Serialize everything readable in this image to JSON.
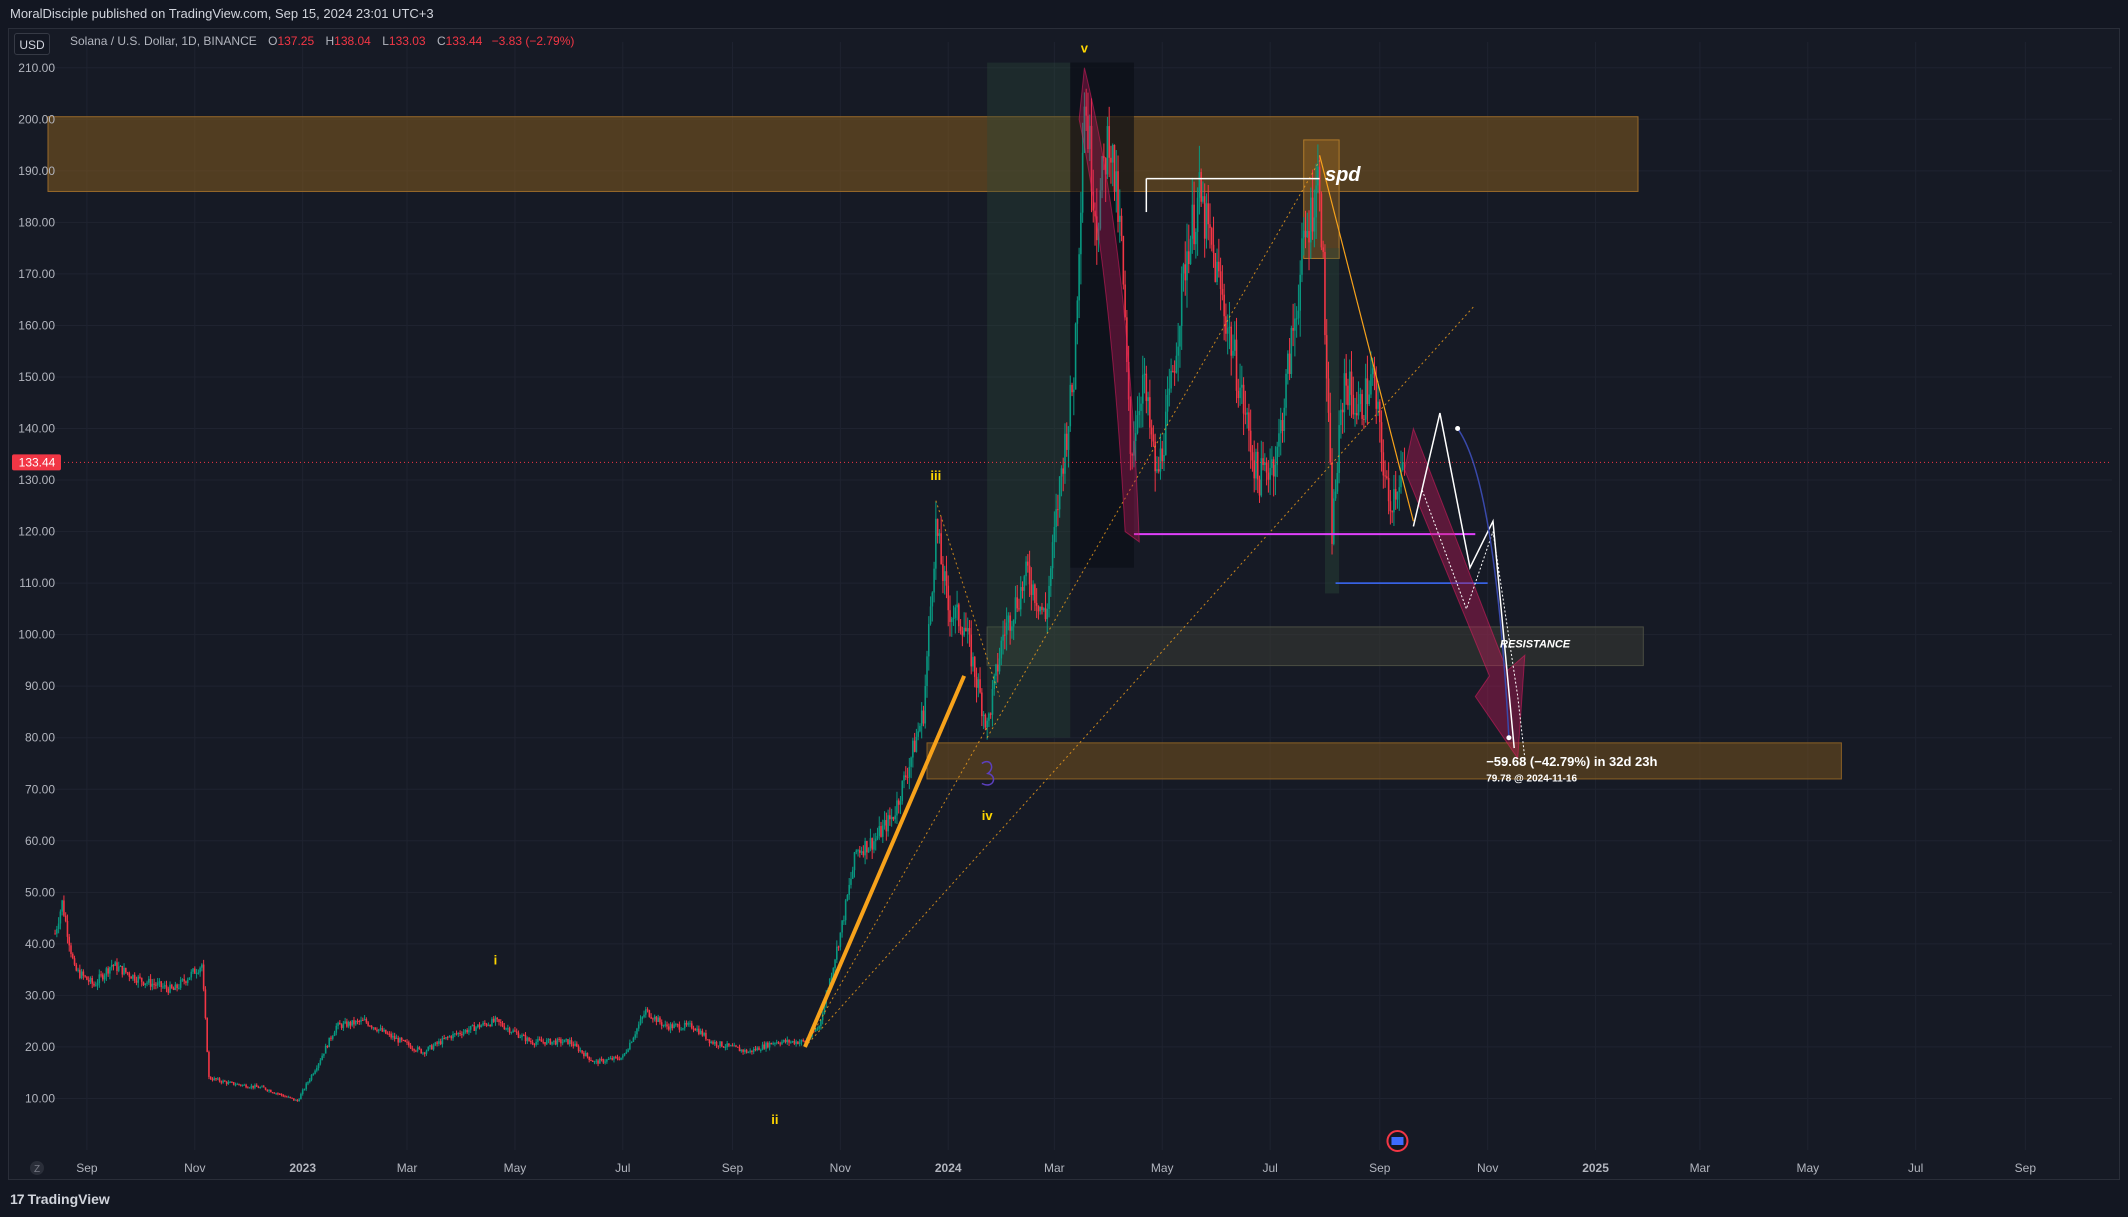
{
  "header": {
    "publisher_text": "MoralDisciple published on TradingView.com, Sep 15, 2024 23:01 UTC+3",
    "currency_button": "USD",
    "symbol_title": "Solana / U.S. Dollar, 1D, BINANCE",
    "ohlc": {
      "o_label": "O",
      "o_value": "137.25",
      "h_label": "H",
      "h_value": "138.04",
      "l_label": "L",
      "l_value": "133.03",
      "c_label": "C",
      "c_value": "133.44",
      "change": "−3.83 (−2.79%)"
    }
  },
  "footer": {
    "brand": "TradingView",
    "z_button": "Z"
  },
  "colors": {
    "background": "#131722",
    "up": "#089981",
    "down": "#f23645",
    "zone_orange": "#7a5520",
    "trendline": "#f7a21b",
    "support_magenta": "#e040fb",
    "support_blue": "#3d6cff",
    "last_price": "#f23645"
  },
  "chart_data": {
    "type": "candlestick",
    "title": "Solana / U.S. Dollar, 1D, BINANCE",
    "y_axis": {
      "ticks": [
        "210.00",
        "200.00",
        "190.00",
        "180.00",
        "170.00",
        "160.00",
        "150.00",
        "140.00",
        "130.00",
        "120.00",
        "110.00",
        "100.00",
        "90.00",
        "80.00",
        "70.00",
        "60.00",
        "50.00",
        "40.00",
        "30.00",
        "20.00",
        "10.00"
      ],
      "range": [
        0,
        215
      ]
    },
    "x_axis": {
      "ticks": [
        "Sep",
        "Nov",
        "2023",
        "Mar",
        "May",
        "Jul",
        "Sep",
        "Nov",
        "2024",
        "Mar",
        "May",
        "Jul",
        "Sep",
        "Nov",
        "2025",
        "Mar",
        "May",
        "Jul",
        "Sep"
      ],
      "range": [
        "2022-08-10",
        "2025-10-20"
      ]
    },
    "last_price": {
      "value": 133.44,
      "label": "133.44"
    },
    "price_path": [
      [
        "2022-08-14",
        42
      ],
      [
        "2022-08-18",
        48
      ],
      [
        "2022-08-25",
        35
      ],
      [
        "2022-09-05",
        32
      ],
      [
        "2022-09-15",
        36
      ],
      [
        "2022-10-01",
        33
      ],
      [
        "2022-10-20",
        31
      ],
      [
        "2022-11-05",
        36
      ],
      [
        "2022-11-09",
        14
      ],
      [
        "2022-11-20",
        13
      ],
      [
        "2022-12-10",
        12
      ],
      [
        "2022-12-29",
        9.5
      ],
      [
        "2023-01-10",
        17
      ],
      [
        "2023-01-20",
        24
      ],
      [
        "2023-02-05",
        25
      ],
      [
        "2023-02-20",
        22
      ],
      [
        "2023-03-10",
        19
      ],
      [
        "2023-03-25",
        22
      ],
      [
        "2023-04-10",
        24
      ],
      [
        "2023-04-20",
        25
      ],
      [
        "2023-05-10",
        21
      ],
      [
        "2023-06-01",
        21
      ],
      [
        "2023-06-15",
        17
      ],
      [
        "2023-07-01",
        18
      ],
      [
        "2023-07-14",
        27
      ],
      [
        "2023-07-25",
        24
      ],
      [
        "2023-08-10",
        24
      ],
      [
        "2023-08-20",
        21
      ],
      [
        "2023-09-10",
        19
      ],
      [
        "2023-09-25",
        21
      ],
      [
        "2023-10-12",
        21
      ],
      [
        "2023-10-20",
        24
      ],
      [
        "2023-11-01",
        42
      ],
      [
        "2023-11-10",
        58
      ],
      [
        "2023-11-20",
        60
      ],
      [
        "2023-12-01",
        65
      ],
      [
        "2023-12-10",
        75
      ],
      [
        "2023-12-18",
        85
      ],
      [
        "2023-12-25",
        121
      ],
      [
        "2024-01-01",
        105
      ],
      [
        "2024-01-10",
        102
      ],
      [
        "2024-01-23",
        82
      ],
      [
        "2024-02-01",
        100
      ],
      [
        "2024-02-15",
        112
      ],
      [
        "2024-02-25",
        103
      ],
      [
        "2024-03-05",
        132
      ],
      [
        "2024-03-12",
        150
      ],
      [
        "2024-03-18",
        205
      ],
      [
        "2024-03-25",
        180
      ],
      [
        "2024-04-01",
        198
      ],
      [
        "2024-04-08",
        175
      ],
      [
        "2024-04-13",
        135
      ],
      [
        "2024-04-20",
        150
      ],
      [
        "2024-04-28",
        130
      ],
      [
        "2024-05-05",
        145
      ],
      [
        "2024-05-15",
        175
      ],
      [
        "2024-05-22",
        185
      ],
      [
        "2024-06-01",
        170
      ],
      [
        "2024-06-10",
        155
      ],
      [
        "2024-06-24",
        130
      ],
      [
        "2024-07-05",
        135
      ],
      [
        "2024-07-20",
        175
      ],
      [
        "2024-07-29",
        190
      ],
      [
        "2024-08-05",
        120
      ],
      [
        "2024-08-12",
        150
      ],
      [
        "2024-08-20",
        143
      ],
      [
        "2024-08-28",
        150
      ],
      [
        "2024-09-06",
        125
      ],
      [
        "2024-09-15",
        133.44
      ]
    ],
    "annotations": {
      "wave_labels": [
        {
          "text": "v",
          "date": "2024-03-18",
          "price": 213
        },
        {
          "text": "iii",
          "date": "2023-12-25",
          "price": 130
        },
        {
          "text": "iv",
          "date": "2024-01-23",
          "price": 64
        },
        {
          "text": "i",
          "date": "2023-04-20",
          "price": 36
        },
        {
          "text": "ii",
          "date": "2023-09-25",
          "price": 5
        }
      ],
      "zone_label": "spd",
      "resistance_label": "RESISTANCE",
      "measure_text": "−59.68 (−42.79%) in 32d 23h",
      "target_text": "79.78 @ 2024-11-16",
      "target": {
        "value": 79.78,
        "date": "2024-11-16"
      },
      "measure_change": {
        "points": -59.68,
        "percent": -42.79,
        "duration": "32d 23h"
      },
      "horizontal_levels": [
        119.5,
        110
      ],
      "zones": [
        {
          "from": "2022-08-10",
          "to": "2025-01-25",
          "low": 186,
          "high": 200.5
        },
        {
          "from": "2024-01-23",
          "to": "2025-01-28",
          "low": 94,
          "high": 101.5
        },
        {
          "from": "2023-12-20",
          "to": "2025-05-20",
          "low": 72,
          "high": 79
        },
        {
          "from": "2024-07-20",
          "to": "2024-08-09",
          "low": 173,
          "high": 196
        }
      ]
    }
  }
}
